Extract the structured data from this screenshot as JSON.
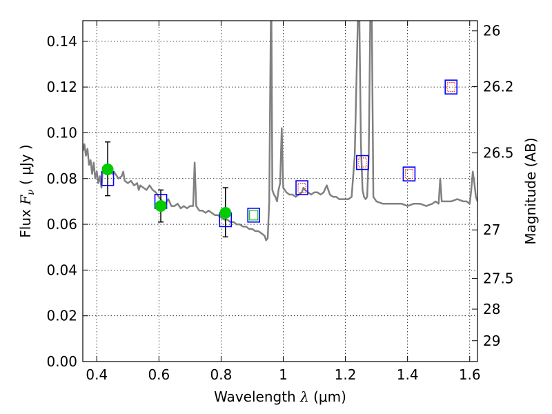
{
  "chart_data": {
    "type": "scatter",
    "xlabel": "Wavelength  λ (μm)",
    "xlabel_parts": {
      "main": "Wavelength  ",
      "symbol": "λ",
      "unit": " (μm)"
    },
    "ylabel": "Flux  F_ν  ( μJy )",
    "ylabel_parts": {
      "main": "Flux  ",
      "symbol": "F",
      "sub": "ν",
      "unit": "  ( μJy )"
    },
    "ylabel_right": "Magnitude (AB)",
    "xlim": [
      0.355,
      1.625
    ],
    "ylim": [
      0.0,
      0.149
    ],
    "x_ticks": [
      0.4,
      0.6,
      0.8,
      1.0,
      1.2,
      1.4,
      1.6
    ],
    "x_tick_labels": [
      "0.4",
      "0.6",
      "0.8",
      "1",
      "1.2",
      "1.4",
      "1.6"
    ],
    "y_ticks": [
      0.0,
      0.02,
      0.04,
      0.06,
      0.08,
      0.1,
      0.12,
      0.14
    ],
    "y_tick_labels": [
      "0.00",
      "0.02",
      "0.04",
      "0.06",
      "0.08",
      "0.10",
      "0.12",
      "0.14"
    ],
    "mag_ticks": [
      26,
      26.2,
      26.5,
      27,
      27.5,
      28,
      29
    ],
    "mag_tick_labels": [
      "26",
      "26.2",
      "26.5",
      "27",
      "27.5",
      "28",
      "29"
    ],
    "grid": true,
    "colors": {
      "spectrum": "#808080",
      "observed": "#00cc00",
      "model_box": "#0000ff",
      "model_inner_red": "#ff0000",
      "model_inner_green": "#00cc00",
      "errorbar": "#000000"
    },
    "spectrum": [
      [
        0.355,
        0.092
      ],
      [
        0.36,
        0.095
      ],
      [
        0.365,
        0.09
      ],
      [
        0.37,
        0.093
      ],
      [
        0.375,
        0.086
      ],
      [
        0.38,
        0.088
      ],
      [
        0.385,
        0.082
      ],
      [
        0.39,
        0.087
      ],
      [
        0.395,
        0.08
      ],
      [
        0.4,
        0.083
      ],
      [
        0.405,
        0.078
      ],
      [
        0.41,
        0.081
      ],
      [
        0.415,
        0.076
      ],
      [
        0.42,
        0.085
      ],
      [
        0.425,
        0.083
      ],
      [
        0.43,
        0.082
      ],
      [
        0.44,
        0.086
      ],
      [
        0.45,
        0.082
      ],
      [
        0.455,
        0.083
      ],
      [
        0.46,
        0.082
      ],
      [
        0.47,
        0.08
      ],
      [
        0.48,
        0.081
      ],
      [
        0.485,
        0.083
      ],
      [
        0.49,
        0.079
      ],
      [
        0.5,
        0.078
      ],
      [
        0.51,
        0.079
      ],
      [
        0.52,
        0.077
      ],
      [
        0.53,
        0.078
      ],
      [
        0.535,
        0.075
      ],
      [
        0.54,
        0.077
      ],
      [
        0.55,
        0.076
      ],
      [
        0.56,
        0.075
      ],
      [
        0.57,
        0.077
      ],
      [
        0.58,
        0.075
      ],
      [
        0.59,
        0.074
      ],
      [
        0.6,
        0.072
      ],
      [
        0.61,
        0.07
      ],
      [
        0.62,
        0.069
      ],
      [
        0.63,
        0.071
      ],
      [
        0.64,
        0.068
      ],
      [
        0.65,
        0.068
      ],
      [
        0.66,
        0.069
      ],
      [
        0.67,
        0.067
      ],
      [
        0.68,
        0.068
      ],
      [
        0.69,
        0.067
      ],
      [
        0.7,
        0.068
      ],
      [
        0.71,
        0.068
      ],
      [
        0.715,
        0.087
      ],
      [
        0.72,
        0.068
      ],
      [
        0.73,
        0.066
      ],
      [
        0.74,
        0.066
      ],
      [
        0.75,
        0.065
      ],
      [
        0.76,
        0.066
      ],
      [
        0.77,
        0.065
      ],
      [
        0.78,
        0.064
      ],
      [
        0.79,
        0.064
      ],
      [
        0.8,
        0.063
      ],
      [
        0.81,
        0.062
      ],
      [
        0.82,
        0.062
      ],
      [
        0.83,
        0.061
      ],
      [
        0.84,
        0.061
      ],
      [
        0.85,
        0.06
      ],
      [
        0.86,
        0.06
      ],
      [
        0.87,
        0.059
      ],
      [
        0.88,
        0.059
      ],
      [
        0.89,
        0.058
      ],
      [
        0.9,
        0.058
      ],
      [
        0.91,
        0.057
      ],
      [
        0.92,
        0.057
      ],
      [
        0.93,
        0.056
      ],
      [
        0.94,
        0.055
      ],
      [
        0.945,
        0.053
      ],
      [
        0.95,
        0.054
      ],
      [
        0.955,
        0.07
      ],
      [
        0.96,
        0.149
      ],
      [
        0.962,
        0.149
      ],
      [
        0.965,
        0.075
      ],
      [
        0.97,
        0.073
      ],
      [
        0.975,
        0.072
      ],
      [
        0.98,
        0.07
      ],
      [
        0.985,
        0.075
      ],
      [
        0.99,
        0.078
      ],
      [
        0.995,
        0.102
      ],
      [
        1.0,
        0.076
      ],
      [
        1.01,
        0.074
      ],
      [
        1.02,
        0.073
      ],
      [
        1.03,
        0.073
      ],
      [
        1.04,
        0.072
      ],
      [
        1.05,
        0.073
      ],
      [
        1.06,
        0.074
      ],
      [
        1.065,
        0.076
      ],
      [
        1.07,
        0.075
      ],
      [
        1.08,
        0.074
      ],
      [
        1.09,
        0.073
      ],
      [
        1.1,
        0.074
      ],
      [
        1.11,
        0.074
      ],
      [
        1.12,
        0.073
      ],
      [
        1.13,
        0.074
      ],
      [
        1.14,
        0.077
      ],
      [
        1.15,
        0.073
      ],
      [
        1.16,
        0.072
      ],
      [
        1.17,
        0.072
      ],
      [
        1.18,
        0.071
      ],
      [
        1.19,
        0.071
      ],
      [
        1.2,
        0.071
      ],
      [
        1.21,
        0.071
      ],
      [
        1.22,
        0.072
      ],
      [
        1.23,
        0.09
      ],
      [
        1.24,
        0.149
      ],
      [
        1.245,
        0.149
      ],
      [
        1.25,
        0.095
      ],
      [
        1.255,
        0.075
      ],
      [
        1.26,
        0.072
      ],
      [
        1.265,
        0.071
      ],
      [
        1.27,
        0.072
      ],
      [
        1.275,
        0.09
      ],
      [
        1.28,
        0.149
      ],
      [
        1.285,
        0.149
      ],
      [
        1.29,
        0.072
      ],
      [
        1.3,
        0.07
      ],
      [
        1.32,
        0.069
      ],
      [
        1.34,
        0.069
      ],
      [
        1.36,
        0.069
      ],
      [
        1.38,
        0.069
      ],
      [
        1.4,
        0.068
      ],
      [
        1.42,
        0.069
      ],
      [
        1.44,
        0.069
      ],
      [
        1.46,
        0.068
      ],
      [
        1.48,
        0.069
      ],
      [
        1.49,
        0.07
      ],
      [
        1.5,
        0.069
      ],
      [
        1.505,
        0.08
      ],
      [
        1.51,
        0.07
      ],
      [
        1.52,
        0.07
      ],
      [
        1.54,
        0.07
      ],
      [
        1.56,
        0.071
      ],
      [
        1.58,
        0.07
      ],
      [
        1.59,
        0.07
      ],
      [
        1.6,
        0.069
      ],
      [
        1.605,
        0.075
      ],
      [
        1.61,
        0.083
      ],
      [
        1.615,
        0.078
      ],
      [
        1.62,
        0.072
      ],
      [
        1.625,
        0.07
      ]
    ],
    "observed_points": [
      {
        "x": 0.435,
        "y": 0.084,
        "yerr_lo": 0.0725,
        "yerr_hi": 0.096
      },
      {
        "x": 0.606,
        "y": 0.068,
        "yerr_lo": 0.061,
        "yerr_hi": 0.075
      },
      {
        "x": 0.814,
        "y": 0.065,
        "yerr_lo": 0.0545,
        "yerr_hi": 0.076
      }
    ],
    "model_boxes": [
      {
        "x": 0.435,
        "y": 0.08,
        "inner": "none"
      },
      {
        "x": 0.606,
        "y": 0.07,
        "inner": "none"
      },
      {
        "x": 0.814,
        "y": 0.062,
        "inner": "none"
      },
      {
        "x": 0.905,
        "y": 0.064,
        "inner": "green"
      },
      {
        "x": 1.06,
        "y": 0.076,
        "inner": "red"
      },
      {
        "x": 1.255,
        "y": 0.087,
        "inner": "red"
      },
      {
        "x": 1.405,
        "y": 0.082,
        "inner": "red"
      },
      {
        "x": 1.54,
        "y": 0.12,
        "inner": "red"
      }
    ]
  }
}
